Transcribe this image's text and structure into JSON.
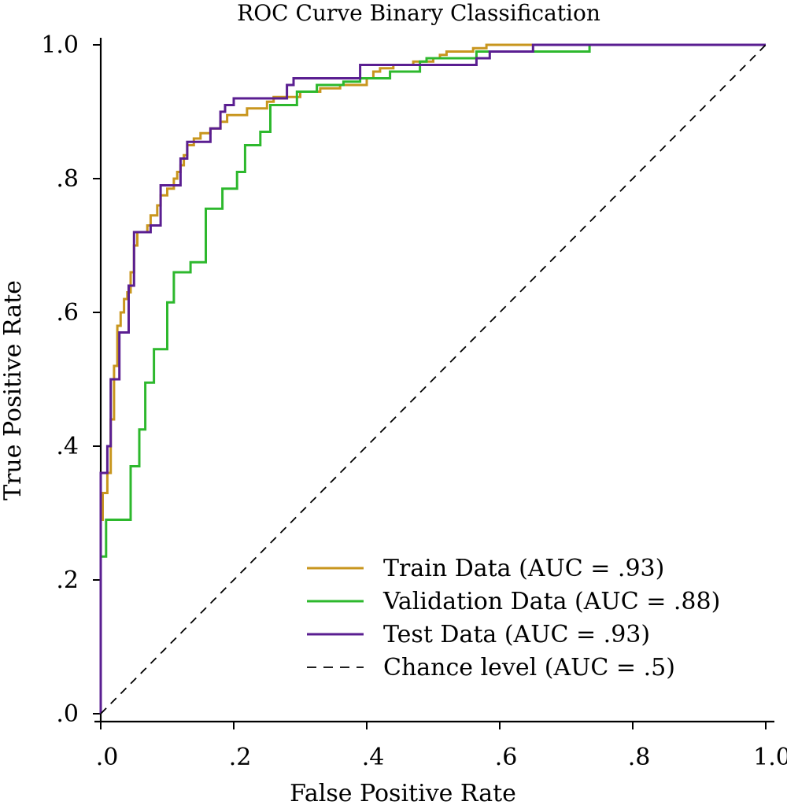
{
  "chart_data": {
    "type": "line",
    "title": "ROC Curve Binary Classification",
    "xlabel": "False Positive Rate",
    "ylabel": "True Positive Rate",
    "xlim": [
      0,
      1
    ],
    "ylim": [
      0,
      1
    ],
    "xticks": [
      0,
      0.2,
      0.4,
      0.6,
      0.8,
      1.0
    ],
    "xtick_labels": [
      ".0",
      ".2",
      ".4",
      ".6",
      ".8",
      "1.0"
    ],
    "yticks": [
      0,
      0.2,
      0.4,
      0.6,
      0.8,
      1.0
    ],
    "ytick_labels": [
      ".0",
      ".2",
      ".4",
      ".6",
      ".8",
      "1.0"
    ],
    "grid": false,
    "legend_position": "bottom-right",
    "step": true,
    "series": [
      {
        "name": "Train Data (AUC = .93)",
        "color": "#C8961E",
        "style": "solid",
        "points": [
          [
            0,
            0
          ],
          [
            0,
            0.29
          ],
          [
            0.003,
            0.29
          ],
          [
            0.003,
            0.33
          ],
          [
            0.01,
            0.33
          ],
          [
            0.01,
            0.36
          ],
          [
            0.015,
            0.36
          ],
          [
            0.015,
            0.44
          ],
          [
            0.02,
            0.44
          ],
          [
            0.02,
            0.52
          ],
          [
            0.025,
            0.52
          ],
          [
            0.025,
            0.58
          ],
          [
            0.03,
            0.58
          ],
          [
            0.03,
            0.6
          ],
          [
            0.035,
            0.6
          ],
          [
            0.035,
            0.62
          ],
          [
            0.04,
            0.62
          ],
          [
            0.04,
            0.63
          ],
          [
            0.045,
            0.63
          ],
          [
            0.045,
            0.66
          ],
          [
            0.05,
            0.66
          ],
          [
            0.05,
            0.7
          ],
          [
            0.055,
            0.7
          ],
          [
            0.055,
            0.72
          ],
          [
            0.07,
            0.72
          ],
          [
            0.07,
            0.73
          ],
          [
            0.075,
            0.73
          ],
          [
            0.075,
            0.745
          ],
          [
            0.085,
            0.745
          ],
          [
            0.085,
            0.76
          ],
          [
            0.09,
            0.76
          ],
          [
            0.09,
            0.775
          ],
          [
            0.1,
            0.775
          ],
          [
            0.1,
            0.785
          ],
          [
            0.11,
            0.785
          ],
          [
            0.11,
            0.8
          ],
          [
            0.115,
            0.8
          ],
          [
            0.115,
            0.81
          ],
          [
            0.12,
            0.81
          ],
          [
            0.12,
            0.82
          ],
          [
            0.125,
            0.82
          ],
          [
            0.125,
            0.835
          ],
          [
            0.13,
            0.835
          ],
          [
            0.13,
            0.85
          ],
          [
            0.14,
            0.85
          ],
          [
            0.14,
            0.86
          ],
          [
            0.15,
            0.86
          ],
          [
            0.15,
            0.868
          ],
          [
            0.165,
            0.868
          ],
          [
            0.165,
            0.875
          ],
          [
            0.18,
            0.875
          ],
          [
            0.18,
            0.885
          ],
          [
            0.19,
            0.885
          ],
          [
            0.19,
            0.895
          ],
          [
            0.22,
            0.895
          ],
          [
            0.22,
            0.905
          ],
          [
            0.25,
            0.905
          ],
          [
            0.25,
            0.915
          ],
          [
            0.26,
            0.915
          ],
          [
            0.26,
            0.922
          ],
          [
            0.3,
            0.922
          ],
          [
            0.3,
            0.93
          ],
          [
            0.33,
            0.93
          ],
          [
            0.33,
            0.935
          ],
          [
            0.36,
            0.935
          ],
          [
            0.36,
            0.94
          ],
          [
            0.4,
            0.94
          ],
          [
            0.4,
            0.95
          ],
          [
            0.41,
            0.95
          ],
          [
            0.41,
            0.96
          ],
          [
            0.42,
            0.96
          ],
          [
            0.42,
            0.965
          ],
          [
            0.44,
            0.965
          ],
          [
            0.44,
            0.97
          ],
          [
            0.47,
            0.97
          ],
          [
            0.47,
            0.975
          ],
          [
            0.5,
            0.975
          ],
          [
            0.5,
            0.98
          ],
          [
            0.51,
            0.98
          ],
          [
            0.51,
            0.985
          ],
          [
            0.52,
            0.985
          ],
          [
            0.52,
            0.99
          ],
          [
            0.56,
            0.99
          ],
          [
            0.56,
            0.995
          ],
          [
            0.58,
            0.995
          ],
          [
            0.58,
            1.0
          ],
          [
            1.0,
            1.0
          ]
        ]
      },
      {
        "name": "Validation Data (AUC = .88)",
        "color": "#2DB82D",
        "style": "solid",
        "points": [
          [
            0,
            0
          ],
          [
            0,
            0.235
          ],
          [
            0.008,
            0.235
          ],
          [
            0.008,
            0.29
          ],
          [
            0.045,
            0.29
          ],
          [
            0.045,
            0.37
          ],
          [
            0.058,
            0.37
          ],
          [
            0.058,
            0.425
          ],
          [
            0.067,
            0.425
          ],
          [
            0.067,
            0.495
          ],
          [
            0.08,
            0.495
          ],
          [
            0.08,
            0.545
          ],
          [
            0.1,
            0.545
          ],
          [
            0.1,
            0.615
          ],
          [
            0.11,
            0.615
          ],
          [
            0.11,
            0.66
          ],
          [
            0.135,
            0.66
          ],
          [
            0.135,
            0.675
          ],
          [
            0.158,
            0.675
          ],
          [
            0.158,
            0.755
          ],
          [
            0.183,
            0.755
          ],
          [
            0.183,
            0.785
          ],
          [
            0.205,
            0.785
          ],
          [
            0.205,
            0.81
          ],
          [
            0.217,
            0.81
          ],
          [
            0.217,
            0.85
          ],
          [
            0.24,
            0.85
          ],
          [
            0.24,
            0.87
          ],
          [
            0.255,
            0.87
          ],
          [
            0.255,
            0.91
          ],
          [
            0.295,
            0.91
          ],
          [
            0.295,
            0.93
          ],
          [
            0.325,
            0.93
          ],
          [
            0.325,
            0.94
          ],
          [
            0.365,
            0.94
          ],
          [
            0.365,
            0.945
          ],
          [
            0.39,
            0.945
          ],
          [
            0.39,
            0.95
          ],
          [
            0.435,
            0.95
          ],
          [
            0.435,
            0.96
          ],
          [
            0.48,
            0.96
          ],
          [
            0.48,
            0.975
          ],
          [
            0.49,
            0.975
          ],
          [
            0.49,
            0.98
          ],
          [
            0.565,
            0.98
          ],
          [
            0.565,
            0.99
          ],
          [
            0.735,
            0.99
          ],
          [
            0.735,
            1.0
          ],
          [
            1.0,
            1.0
          ]
        ]
      },
      {
        "name": "Test Data (AUC = .93)",
        "color": "#5A1E91",
        "style": "solid",
        "points": [
          [
            0,
            0
          ],
          [
            0,
            0.36
          ],
          [
            0.01,
            0.36
          ],
          [
            0.01,
            0.4
          ],
          [
            0.015,
            0.4
          ],
          [
            0.015,
            0.5
          ],
          [
            0.028,
            0.5
          ],
          [
            0.028,
            0.57
          ],
          [
            0.042,
            0.57
          ],
          [
            0.042,
            0.64
          ],
          [
            0.05,
            0.64
          ],
          [
            0.05,
            0.72
          ],
          [
            0.075,
            0.72
          ],
          [
            0.075,
            0.73
          ],
          [
            0.09,
            0.73
          ],
          [
            0.09,
            0.79
          ],
          [
            0.12,
            0.79
          ],
          [
            0.12,
            0.83
          ],
          [
            0.13,
            0.83
          ],
          [
            0.13,
            0.855
          ],
          [
            0.165,
            0.855
          ],
          [
            0.165,
            0.875
          ],
          [
            0.18,
            0.875
          ],
          [
            0.18,
            0.9
          ],
          [
            0.187,
            0.9
          ],
          [
            0.187,
            0.91
          ],
          [
            0.2,
            0.91
          ],
          [
            0.2,
            0.92
          ],
          [
            0.28,
            0.92
          ],
          [
            0.28,
            0.94
          ],
          [
            0.29,
            0.94
          ],
          [
            0.29,
            0.95
          ],
          [
            0.39,
            0.95
          ],
          [
            0.39,
            0.97
          ],
          [
            0.565,
            0.97
          ],
          [
            0.565,
            0.98
          ],
          [
            0.585,
            0.98
          ],
          [
            0.585,
            0.99
          ],
          [
            0.65,
            0.99
          ],
          [
            0.65,
            1.0
          ],
          [
            1.0,
            1.0
          ]
        ]
      },
      {
        "name": "Chance level (AUC = .5)",
        "color": "#000000",
        "style": "dashed",
        "points": [
          [
            0,
            0
          ],
          [
            1,
            1
          ]
        ]
      }
    ]
  }
}
